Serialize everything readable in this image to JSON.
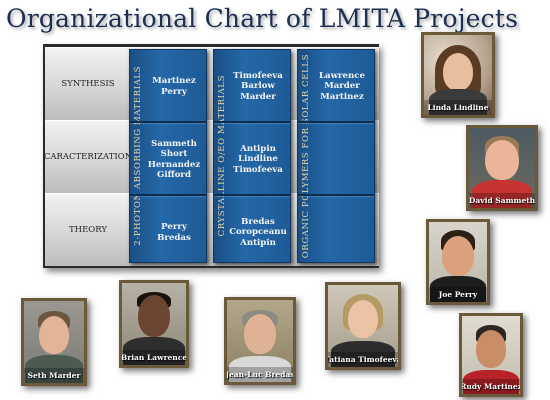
{
  "title": "Organizational Chart of LMITA Projects",
  "rows": [
    {
      "label": "SYNTHESIS"
    },
    {
      "label": "CARACTERIZATION"
    },
    {
      "label": "THEORY"
    }
  ],
  "columns": [
    {
      "title": "2-PHOTON ABSORBING MATERIALS",
      "cells": [
        [
          "Martinez",
          "Perry"
        ],
        [
          "Sammeth",
          "Short",
          "Hernandez",
          "Gifford"
        ],
        [
          "Perry",
          "Bredas"
        ]
      ]
    },
    {
      "title": "CRYSTALLINE O/EO MATERIALS",
      "cells": [
        [
          "Timofeeva",
          "Barlow",
          "Marder"
        ],
        [
          "Antipin",
          "Lindline",
          "Timofeeva"
        ],
        [
          "Bredas",
          "Coropceanu",
          "Antipin"
        ]
      ]
    },
    {
      "title": "ORGANIC POLYMERS FOR SOLAR CELLS",
      "cells": [
        [
          "Lawrence",
          "Marder",
          "Martinez"
        ],
        [],
        []
      ]
    }
  ],
  "people": [
    {
      "name": "Linda Lindline"
    },
    {
      "name": "David Sammeth"
    },
    {
      "name": "Joe Perry"
    },
    {
      "name": "Rudy Martinez"
    },
    {
      "name": "Seth Marder"
    },
    {
      "name": "Brian Lawrence"
    },
    {
      "name": "Jean-Luc Bredas"
    },
    {
      "name": "Tatiana Timofeeva"
    }
  ],
  "colors": {
    "title": "#1d2f52",
    "column_fill": "#2468a8",
    "column_title_text": "#e9d9a8",
    "cell_text": "#f6f6f6",
    "photo_frame": "#6a5a3a"
  }
}
